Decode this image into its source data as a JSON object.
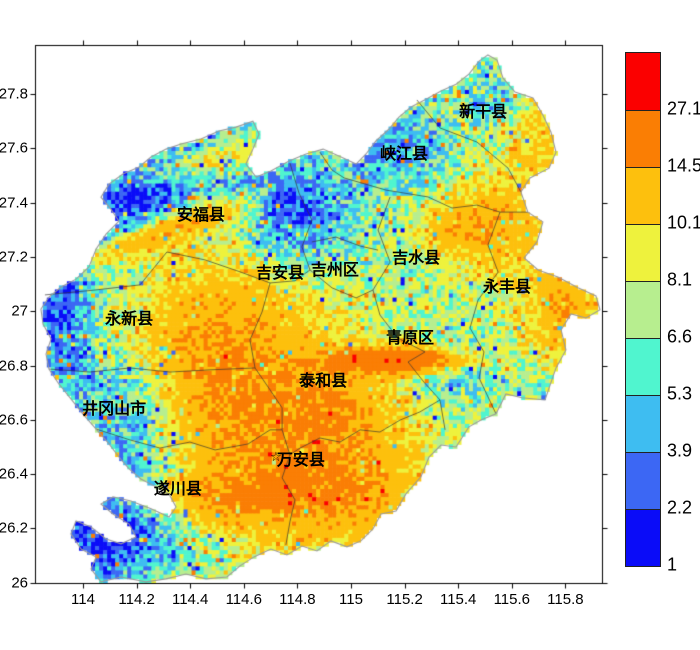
{
  "page": {
    "background_color": "#ffffff"
  },
  "chart_data": {
    "type": "heatmap",
    "title": "",
    "xlabel": "",
    "ylabel": "",
    "grid": false,
    "legend_position": "right-colorbar",
    "xlim": [
      113.82,
      115.94
    ],
    "ylim": [
      25.99,
      27.98
    ],
    "x_tick_labels": [
      "114",
      "114.2",
      "114.4",
      "114.6",
      "114.8",
      "115",
      "115.2",
      "115.4",
      "115.6",
      "115.8"
    ],
    "x_tick_values": [
      114,
      114.2,
      114.4,
      114.6,
      114.8,
      115,
      115.2,
      115.4,
      115.6,
      115.8
    ],
    "y_tick_labels_top_to_bottom": [
      "27.8",
      "27.6",
      "27.4",
      "27.2",
      "27",
      "26.8",
      "26.6",
      "26.4",
      "26.2",
      "26"
    ],
    "y_tick_values_top_to_bottom": [
      27.8,
      27.6,
      27.4,
      27.2,
      27,
      26.8,
      26.6,
      26.4,
      26.2,
      26
    ],
    "axis_color": "#000000",
    "region_outline_color": "#9a9a9a",
    "internal_border_color": "#333333",
    "colorbar": {
      "labels_top_to_bottom": [
        "27.1",
        "14.5",
        "10.1",
        "8.1",
        "6.6",
        "5.3",
        "3.9",
        "2.2",
        "1"
      ],
      "breaks_low_to_high": [
        1,
        2.2,
        3.9,
        5.3,
        6.6,
        8.1,
        10.1,
        14.5,
        27.1
      ],
      "colors_low_to_high": [
        "#0a0cf8",
        "#3c67f4",
        "#3ebdf1",
        "#50f5cf",
        "#b7ee8f",
        "#eef23d",
        "#fdc00d",
        "#fa7e04",
        "#fb0000"
      ]
    },
    "districts": [
      {
        "name": "新干县",
        "lon": 115.493,
        "lat": 27.741
      },
      {
        "name": "峡江县",
        "lon": 115.198,
        "lat": 27.586
      },
      {
        "name": "安福县",
        "lon": 114.44,
        "lat": 27.362
      },
      {
        "name": "吉水县",
        "lon": 115.243,
        "lat": 27.203
      },
      {
        "name": "吉安县",
        "lon": 114.735,
        "lat": 27.148
      },
      {
        "name": "吉州区",
        "lon": 114.94,
        "lat": 27.159
      },
      {
        "name": "永丰县",
        "lon": 115.582,
        "lat": 27.096
      },
      {
        "name": "永新县",
        "lon": 114.172,
        "lat": 26.979
      },
      {
        "name": "青原区",
        "lon": 115.22,
        "lat": 26.909
      },
      {
        "name": "泰和县",
        "lon": 114.896,
        "lat": 26.75
      },
      {
        "name": "井冈山市",
        "lon": 114.116,
        "lat": 26.647
      },
      {
        "name": "万安县",
        "lon": 114.813,
        "lat": 26.459
      },
      {
        "name": "遂川县",
        "lon": 114.354,
        "lat": 26.353
      }
    ],
    "star_marker": {
      "glyph": "☆",
      "lon": 114.72,
      "lat": 26.463
    },
    "boundary": [
      [
        115.511,
        27.944
      ],
      [
        115.545,
        27.925
      ],
      [
        115.567,
        27.859
      ],
      [
        115.612,
        27.807
      ],
      [
        115.679,
        27.785
      ],
      [
        115.716,
        27.723
      ],
      [
        115.746,
        27.66
      ],
      [
        115.765,
        27.586
      ],
      [
        115.739,
        27.527
      ],
      [
        115.668,
        27.491
      ],
      [
        115.634,
        27.439
      ],
      [
        115.66,
        27.365
      ],
      [
        115.716,
        27.329
      ],
      [
        115.694,
        27.255
      ],
      [
        115.646,
        27.196
      ],
      [
        115.698,
        27.152
      ],
      [
        115.772,
        27.126
      ],
      [
        115.847,
        27.086
      ],
      [
        115.914,
        27.056
      ],
      [
        115.929,
        27.005
      ],
      [
        115.877,
        26.975
      ],
      [
        115.821,
        26.99
      ],
      [
        115.784,
        26.931
      ],
      [
        115.802,
        26.857
      ],
      [
        115.765,
        26.791
      ],
      [
        115.739,
        26.717
      ],
      [
        115.724,
        26.673
      ],
      [
        115.638,
        26.681
      ],
      [
        115.578,
        26.695
      ],
      [
        115.541,
        26.622
      ],
      [
        115.485,
        26.599
      ],
      [
        115.44,
        26.574
      ],
      [
        115.392,
        26.5
      ],
      [
        115.336,
        26.507
      ],
      [
        115.291,
        26.463
      ],
      [
        115.261,
        26.39
      ],
      [
        115.205,
        26.327
      ],
      [
        115.168,
        26.264
      ],
      [
        115.112,
        26.253
      ],
      [
        115.082,
        26.198
      ],
      [
        115.037,
        26.154
      ],
      [
        114.985,
        26.132
      ],
      [
        114.925,
        26.154
      ],
      [
        114.873,
        26.117
      ],
      [
        114.817,
        26.135
      ],
      [
        114.761,
        26.102
      ],
      [
        114.701,
        26.124
      ],
      [
        114.638,
        26.095
      ],
      [
        114.586,
        26.062
      ],
      [
        114.537,
        26.021
      ],
      [
        114.459,
        26.014
      ],
      [
        114.384,
        26.032
      ],
      [
        114.31,
        26.014
      ],
      [
        114.235,
        26.003
      ],
      [
        114.142,
        26.021
      ],
      [
        114.067,
        26.003
      ],
      [
        114.03,
        26.051
      ],
      [
        114.049,
        26.095
      ],
      [
        113.993,
        26.124
      ],
      [
        113.955,
        26.18
      ],
      [
        113.974,
        26.227
      ],
      [
        114.03,
        26.205
      ],
      [
        114.086,
        26.161
      ],
      [
        114.142,
        26.143
      ],
      [
        114.198,
        26.168
      ],
      [
        114.172,
        26.216
      ],
      [
        114.112,
        26.253
      ],
      [
        114.067,
        26.29
      ],
      [
        114.112,
        26.316
      ],
      [
        114.179,
        26.301
      ],
      [
        114.254,
        26.272
      ],
      [
        114.321,
        26.242
      ],
      [
        114.347,
        26.279
      ],
      [
        114.321,
        26.327
      ],
      [
        114.272,
        26.353
      ],
      [
        114.216,
        26.382
      ],
      [
        114.172,
        26.419
      ],
      [
        114.134,
        26.463
      ],
      [
        114.097,
        26.511
      ],
      [
        114.049,
        26.566
      ],
      [
        114.0,
        26.621
      ],
      [
        113.955,
        26.677
      ],
      [
        113.91,
        26.732
      ],
      [
        113.873,
        26.787
      ],
      [
        113.862,
        26.842
      ],
      [
        113.881,
        26.898
      ],
      [
        113.851,
        26.953
      ],
      [
        113.843,
        27.008
      ],
      [
        113.873,
        27.052
      ],
      [
        113.918,
        27.089
      ],
      [
        113.974,
        27.118
      ],
      [
        114.022,
        27.163
      ],
      [
        114.049,
        27.229
      ],
      [
        114.086,
        27.284
      ],
      [
        114.134,
        27.332
      ],
      [
        114.104,
        27.376
      ],
      [
        114.067,
        27.42
      ],
      [
        114.097,
        27.468
      ],
      [
        114.149,
        27.505
      ],
      [
        114.209,
        27.531
      ],
      [
        114.254,
        27.568
      ],
      [
        114.31,
        27.597
      ],
      [
        114.366,
        27.616
      ],
      [
        114.44,
        27.634
      ],
      [
        114.507,
        27.664
      ],
      [
        114.571,
        27.678
      ],
      [
        114.634,
        27.7
      ],
      [
        114.657,
        27.653
      ],
      [
        114.634,
        27.597
      ],
      [
        114.608,
        27.542
      ],
      [
        114.646,
        27.494
      ],
      [
        114.701,
        27.516
      ],
      [
        114.769,
        27.553
      ],
      [
        114.832,
        27.579
      ],
      [
        114.896,
        27.597
      ],
      [
        114.963,
        27.568
      ],
      [
        115.019,
        27.542
      ],
      [
        115.056,
        27.579
      ],
      [
        115.093,
        27.627
      ],
      [
        115.142,
        27.671
      ],
      [
        115.179,
        27.715
      ],
      [
        115.224,
        27.752
      ],
      [
        115.28,
        27.781
      ],
      [
        115.336,
        27.811
      ],
      [
        115.392,
        27.836
      ],
      [
        115.44,
        27.873
      ],
      [
        115.478,
        27.921
      ]
    ],
    "internal_borders": [
      [
        [
          113.858,
          27.06
        ],
        [
          114.045,
          27.078
        ],
        [
          114.213,
          27.097
        ],
        [
          114.313,
          27.218
        ],
        [
          114.455,
          27.189
        ],
        [
          114.586,
          27.145
        ],
        [
          114.698,
          27.104
        ],
        [
          114.791,
          27.112
        ],
        [
          114.847,
          27.152
        ]
      ],
      [
        [
          114.847,
          27.152
        ],
        [
          114.817,
          27.237
        ],
        [
          114.854,
          27.336
        ],
        [
          114.806,
          27.435
        ],
        [
          114.772,
          27.546
        ]
      ],
      [
        [
          114.884,
          27.586
        ],
        [
          114.929,
          27.52
        ],
        [
          114.974,
          27.491
        ]
      ],
      [
        [
          115.246,
          27.778
        ],
        [
          115.332,
          27.675
        ],
        [
          115.47,
          27.623
        ],
        [
          115.586,
          27.527
        ],
        [
          115.634,
          27.439
        ]
      ],
      [
        [
          114.974,
          27.491
        ],
        [
          115.131,
          27.446
        ],
        [
          115.287,
          27.421
        ],
        [
          115.377,
          27.38
        ],
        [
          115.47,
          27.391
        ],
        [
          115.556,
          27.365
        ],
        [
          115.66,
          27.365
        ]
      ],
      [
        [
          115.556,
          27.365
        ],
        [
          115.511,
          27.244
        ],
        [
          115.549,
          27.144
        ],
        [
          115.474,
          27.041
        ],
        [
          115.444,
          26.938
        ],
        [
          115.496,
          26.85
        ],
        [
          115.478,
          26.754
        ],
        [
          115.541,
          26.622
        ]
      ],
      [
        [
          115.146,
          27.421
        ],
        [
          115.101,
          27.299
        ],
        [
          115.146,
          27.181
        ],
        [
          115.082,
          27.078
        ],
        [
          115.108,
          26.986
        ]
      ],
      [
        [
          115.108,
          26.986
        ],
        [
          115.175,
          26.901
        ],
        [
          115.276,
          26.85
        ],
        [
          115.213,
          26.813
        ],
        [
          115.272,
          26.739
        ],
        [
          115.332,
          26.673
        ],
        [
          115.351,
          26.563
        ]
      ],
      [
        [
          114.854,
          27.255
        ],
        [
          114.944,
          27.273
        ],
        [
          115.034,
          27.24
        ],
        [
          115.101,
          27.225
        ]
      ],
      [
        [
          114.847,
          27.152
        ],
        [
          114.929,
          27.086
        ],
        [
          115.019,
          27.049
        ],
        [
          115.082,
          27.078
        ]
      ],
      [
        [
          114.698,
          27.104
        ],
        [
          114.668,
          26.997
        ],
        [
          114.623,
          26.894
        ],
        [
          114.642,
          26.791
        ]
      ],
      [
        [
          113.873,
          26.787
        ],
        [
          114.026,
          26.776
        ],
        [
          114.175,
          26.791
        ],
        [
          114.325,
          26.776
        ],
        [
          114.474,
          26.784
        ],
        [
          114.642,
          26.791
        ]
      ],
      [
        [
          114.049,
          26.566
        ],
        [
          114.175,
          26.526
        ],
        [
          114.287,
          26.496
        ],
        [
          114.399,
          26.518
        ],
        [
          114.493,
          26.489
        ],
        [
          114.616,
          26.511
        ],
        [
          114.698,
          26.563
        ],
        [
          114.743,
          26.563
        ]
      ],
      [
        [
          114.642,
          26.791
        ],
        [
          114.698,
          26.71
        ],
        [
          114.743,
          26.644
        ],
        [
          114.743,
          26.563
        ],
        [
          114.772,
          26.471
        ],
        [
          114.743,
          26.386
        ],
        [
          114.791,
          26.305
        ],
        [
          114.772,
          26.224
        ],
        [
          114.757,
          26.139
        ]
      ],
      [
        [
          115.332,
          26.673
        ],
        [
          115.257,
          26.629
        ],
        [
          115.183,
          26.599
        ],
        [
          115.108,
          26.555
        ],
        [
          115.034,
          26.563
        ],
        [
          114.959,
          26.518
        ],
        [
          114.884,
          26.533
        ],
        [
          114.81,
          26.496
        ],
        [
          114.772,
          26.471
        ]
      ]
    ],
    "value_field": {
      "base": 6.8,
      "noise": 2.3,
      "seed": 1234,
      "cell_deg": 0.015,
      "features": [
        {
          "kind": "hotspot",
          "lon": 114.627,
          "lat": 26.577,
          "amp": 6.5,
          "su": 0.4,
          "sw": 0.3,
          "rot": 0
        },
        {
          "kind": "hotspot",
          "lon": 114.515,
          "lat": 26.935,
          "amp": 4.5,
          "su": 0.22,
          "sw": 0.22,
          "rot": 0
        },
        {
          "kind": "hotspot",
          "lon": 115.17,
          "lat": 26.82,
          "amp": 17,
          "su": 0.16,
          "sw": 0.03,
          "rot": 0
        },
        {
          "kind": "hotspot",
          "lon": 114.321,
          "lat": 27.299,
          "amp": 7,
          "su": 0.25,
          "sw": 0.035,
          "rot": 20
        },
        {
          "kind": "hotspot",
          "lon": 114.451,
          "lat": 27.546,
          "amp": 5,
          "su": 0.18,
          "sw": 0.04,
          "rot": 15
        },
        {
          "kind": "hotspot",
          "lon": 115.418,
          "lat": 27.31,
          "amp": 5.5,
          "su": 0.12,
          "sw": 0.08,
          "rot": 0
        },
        {
          "kind": "hotspot",
          "lon": 115.679,
          "lat": 27.34,
          "amp": 4.5,
          "su": 0.18,
          "sw": 0.25,
          "rot": 0
        },
        {
          "kind": "hotspot",
          "lon": 115.81,
          "lat": 26.986,
          "amp": 5.5,
          "su": 0.09,
          "sw": 0.13,
          "rot": 0
        },
        {
          "kind": "hotspot",
          "lon": 114.978,
          "lat": 26.323,
          "amp": 5.5,
          "su": 0.25,
          "sw": 0.13,
          "rot": 0
        },
        {
          "kind": "hotspot",
          "lon": 114.496,
          "lat": 26.301,
          "amp": 5,
          "su": 0.2,
          "sw": 0.06,
          "rot": 5
        },
        {
          "kind": "hotspot",
          "lon": 115.694,
          "lat": 27.723,
          "amp": 4,
          "su": 0.09,
          "sw": 0.1,
          "rot": 0
        },
        {
          "kind": "hotspot",
          "lon": 114.937,
          "lat": 26.629,
          "amp": 3.5,
          "su": 0.15,
          "sw": 0.1,
          "rot": 0
        },
        {
          "kind": "coldspot",
          "lon": 113.91,
          "lat": 27.005,
          "amp": -4.5,
          "su": 0.09,
          "sw": 0.28,
          "rot": 0
        },
        {
          "kind": "coldspot",
          "lon": 114.235,
          "lat": 27.424,
          "amp": -5.5,
          "su": 0.22,
          "sw": 0.09,
          "rot": 30
        },
        {
          "kind": "coldspot",
          "lon": 114.101,
          "lat": 26.168,
          "amp": -6,
          "su": 0.25,
          "sw": 0.11,
          "rot": 10
        },
        {
          "kind": "coldspot",
          "lon": 114.19,
          "lat": 26.474,
          "amp": -4.5,
          "su": 0.14,
          "sw": 0.14,
          "rot": 0
        },
        {
          "kind": "coldspot",
          "lon": 114.164,
          "lat": 26.71,
          "amp": -3.5,
          "su": 0.13,
          "sw": 0.13,
          "rot": 0
        },
        {
          "kind": "coldspot",
          "lon": 114.802,
          "lat": 27.321,
          "amp": -4,
          "su": 0.13,
          "sw": 0.12,
          "rot": 0
        },
        {
          "kind": "coldspot",
          "lon": 115.153,
          "lat": 27.597,
          "amp": -3,
          "su": 0.14,
          "sw": 0.09,
          "rot": 0
        },
        {
          "kind": "coldspot",
          "lon": 115.593,
          "lat": 27.748,
          "amp": -3.5,
          "su": 0.09,
          "sw": 0.09,
          "rot": 0
        },
        {
          "kind": "coldspot",
          "lon": 115.373,
          "lat": 26.78,
          "amp": -2.5,
          "su": 0.11,
          "sw": 0.09,
          "rot": 0
        },
        {
          "kind": "coldspot",
          "lon": 114.698,
          "lat": 27.446,
          "amp": -2.5,
          "su": 0.13,
          "sw": 0.07,
          "rot": 0
        }
      ]
    }
  }
}
